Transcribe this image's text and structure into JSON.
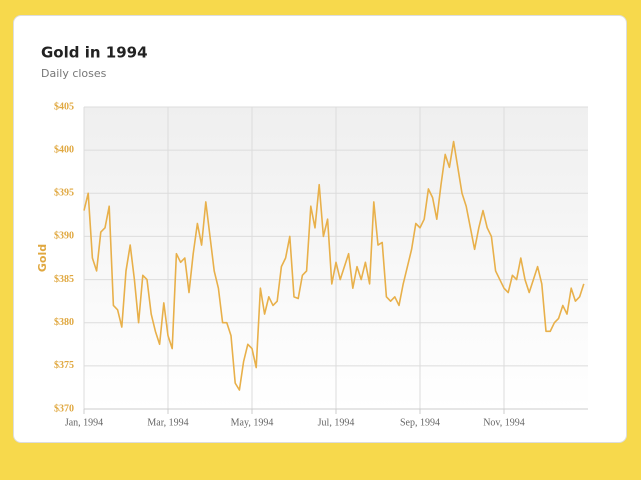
{
  "chart_data": {
    "type": "line",
    "title": "Gold in 1994",
    "subtitle": "Daily closes",
    "y_label": "Gold",
    "categories": [
      "Jan, 1994",
      null,
      null,
      null,
      null,
      null,
      null,
      null,
      null,
      null,
      null,
      null,
      null,
      null,
      null,
      null,
      null,
      null,
      null,
      null,
      "Mar, 1994",
      null,
      null,
      null,
      null,
      null,
      null,
      null,
      null,
      null,
      null,
      null,
      null,
      null,
      null,
      null,
      null,
      null,
      null,
      null,
      "May, 1994",
      null,
      null,
      null,
      null,
      null,
      null,
      null,
      null,
      null,
      null,
      null,
      null,
      null,
      null,
      null,
      null,
      null,
      null,
      null,
      "Jul, 1994",
      null,
      null,
      null,
      null,
      null,
      null,
      null,
      null,
      null,
      null,
      null,
      null,
      null,
      null,
      null,
      null,
      null,
      null,
      null,
      "Sep, 1994",
      null,
      null,
      null,
      null,
      null,
      null,
      null,
      null,
      null,
      null,
      null,
      null,
      null,
      null,
      null,
      null,
      null,
      null,
      null,
      "Nov, 1994",
      null,
      null,
      null,
      null,
      null,
      null,
      null,
      null,
      null,
      null,
      null,
      null,
      null,
      null,
      null,
      null,
      null,
      null,
      null
    ],
    "series": [
      {
        "name": "Gold",
        "color": "#e8b04a",
        "values": [
          393,
          395,
          387.5,
          386,
          390.5,
          391,
          393.5,
          382,
          381.5,
          379.5,
          386,
          389,
          385,
          380,
          385.5,
          385,
          381,
          379,
          377.5,
          382.3,
          378.5,
          377,
          388,
          387,
          387.5,
          383.5,
          388,
          391.5,
          389,
          394,
          390,
          386,
          384,
          380,
          380,
          378.5,
          373,
          372.2,
          375.5,
          377.5,
          377,
          374.8,
          384,
          381,
          383,
          382,
          382.5,
          386.5,
          387.5,
          390,
          383,
          382.8,
          385.5,
          386,
          393.5,
          391,
          396,
          390,
          392,
          384.5,
          387,
          385,
          386.5,
          388,
          384,
          386.5,
          385,
          387,
          384.5,
          394,
          389,
          389.3,
          383,
          382.5,
          383,
          382,
          384.5,
          386.5,
          388.5,
          391.5,
          391,
          392,
          395.5,
          394.5,
          392,
          396,
          399.5,
          398,
          401,
          398,
          395,
          393.5,
          391,
          388.5,
          391,
          393,
          391,
          390,
          386,
          385,
          384,
          383.5,
          385.5,
          385,
          387.5,
          385,
          383.5,
          385,
          386.5,
          384.5,
          379,
          379,
          380,
          380.5,
          382,
          381,
          384,
          382.5,
          383,
          384.5
        ]
      }
    ],
    "ylim": [
      370,
      405
    ],
    "yticks": [
      {
        "value": 370,
        "label": "$370"
      },
      {
        "value": 375,
        "label": "$375"
      },
      {
        "value": 380,
        "label": "$380"
      },
      {
        "value": 385,
        "label": "$385"
      },
      {
        "value": 390,
        "label": "$390"
      },
      {
        "value": 395,
        "label": "$395"
      },
      {
        "value": 400,
        "label": "$400"
      },
      {
        "value": 405,
        "label": "$405"
      }
    ],
    "grid": true
  }
}
